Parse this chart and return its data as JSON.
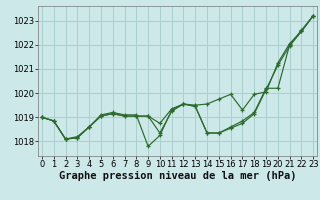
{
  "xlabel": "Graphe pression niveau de la mer (hPa)",
  "bg_color": "#cce8e8",
  "grid_color": "#aacfcf",
  "line_color": "#2d6a2d",
  "ylim": [
    1017.4,
    1023.6
  ],
  "xlim": [
    -0.3,
    23.3
  ],
  "yticks": [
    1018,
    1019,
    1020,
    1021,
    1022,
    1023
  ],
  "xticks": [
    0,
    1,
    2,
    3,
    4,
    5,
    6,
    7,
    8,
    9,
    10,
    11,
    12,
    13,
    14,
    15,
    16,
    17,
    18,
    19,
    20,
    21,
    22,
    23
  ],
  "series": [
    [
      1019.0,
      1018.85,
      1018.1,
      1018.15,
      1018.6,
      1019.05,
      1019.15,
      1019.05,
      1019.05,
      1019.05,
      1018.75,
      1019.35,
      1019.55,
      1019.5,
      1019.55,
      1019.75,
      1019.95,
      1019.3,
      1019.95,
      1020.05,
      1021.25,
      1022.05,
      1022.55,
      1023.2
    ],
    [
      1019.0,
      1018.85,
      1018.1,
      1018.15,
      1018.6,
      1019.05,
      1019.15,
      1019.05,
      1019.05,
      1019.05,
      1018.35,
      1019.25,
      1019.55,
      1019.45,
      1018.35,
      1018.35,
      1018.55,
      1018.75,
      1019.15,
      1020.15,
      1021.15,
      1021.95,
      1022.55,
      1023.2
    ],
    [
      1019.0,
      1018.85,
      1018.1,
      1018.2,
      1018.6,
      1019.1,
      1019.2,
      1019.1,
      1019.1,
      1017.8,
      1018.25,
      1019.3,
      1019.55,
      1019.45,
      1018.35,
      1018.35,
      1018.6,
      1018.85,
      1019.2,
      1020.2,
      1020.2,
      1022.0,
      1022.6,
      1023.2
    ]
  ],
  "xlabel_fontsize": 7.5,
  "tick_fontsize": 6.0,
  "figwidth": 3.2,
  "figheight": 2.0,
  "dpi": 100
}
